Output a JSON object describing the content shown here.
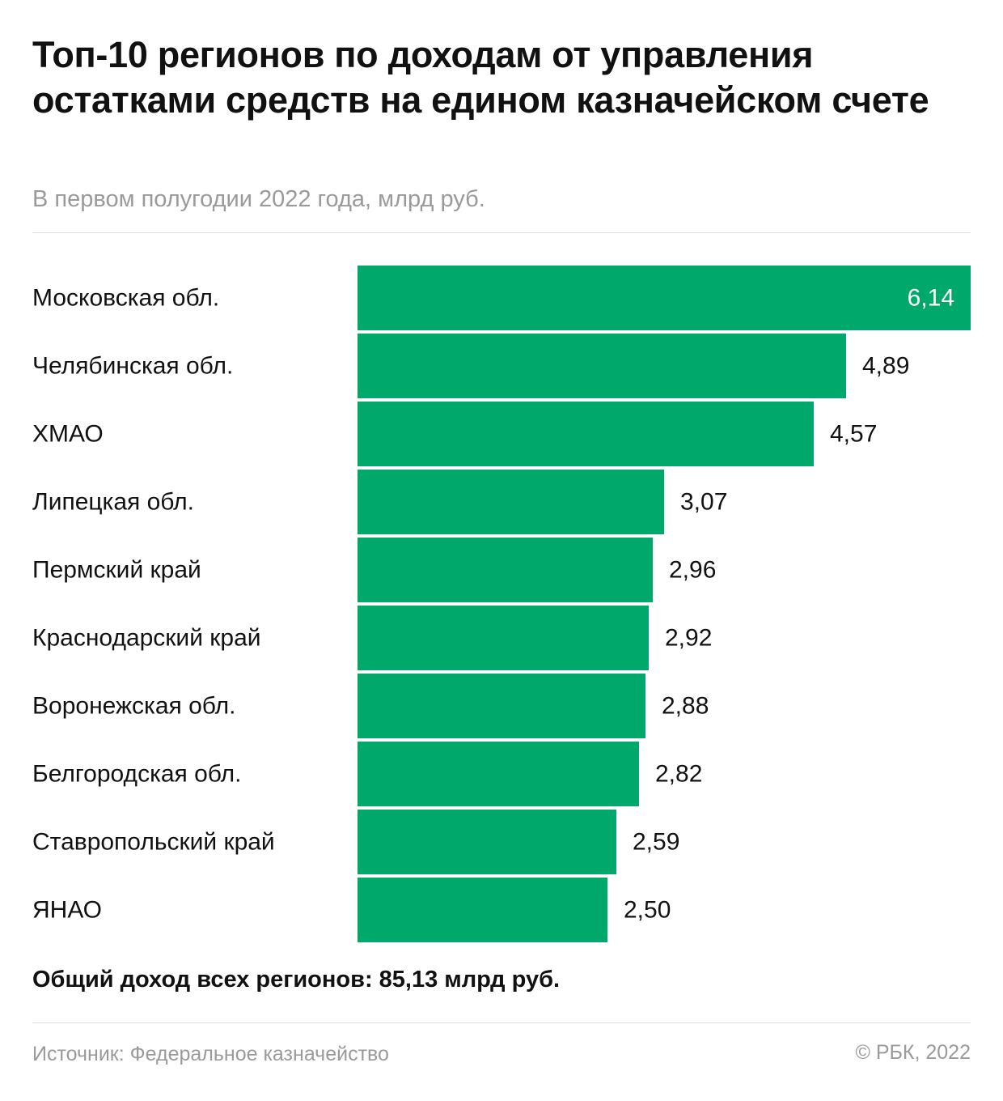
{
  "header": {
    "title": "Топ-10 регионов по доходам от управления остатками средств на едином казначейском счете",
    "subtitle": "В первом полугодии 2022 года, млрд руб."
  },
  "chart_data": {
    "type": "bar",
    "orientation": "horizontal",
    "categories": [
      "Московская обл.",
      "Челябинская обл.",
      "ХМАО",
      "Липецкая обл.",
      "Пермский край",
      "Краснодарский край",
      "Воронежская обл.",
      "Белгородская обл.",
      "Ставропольский край",
      "ЯНАО"
    ],
    "values": [
      6.14,
      4.89,
      4.57,
      3.07,
      2.96,
      2.92,
      2.88,
      2.82,
      2.59,
      2.5
    ],
    "value_labels": [
      "6,14",
      "4,89",
      "4,57",
      "3,07",
      "2,96",
      "2,92",
      "2,88",
      "2,82",
      "2,59",
      "2,50"
    ],
    "xlim": [
      0,
      6.14
    ],
    "grid": false,
    "bar_color": "#00a86b"
  },
  "footer": {
    "total": "Общий доход всех регионов: 85,13 млрд руб.",
    "source": "Источник: Федеральное казначейство",
    "credit": "© РБК, 2022"
  }
}
